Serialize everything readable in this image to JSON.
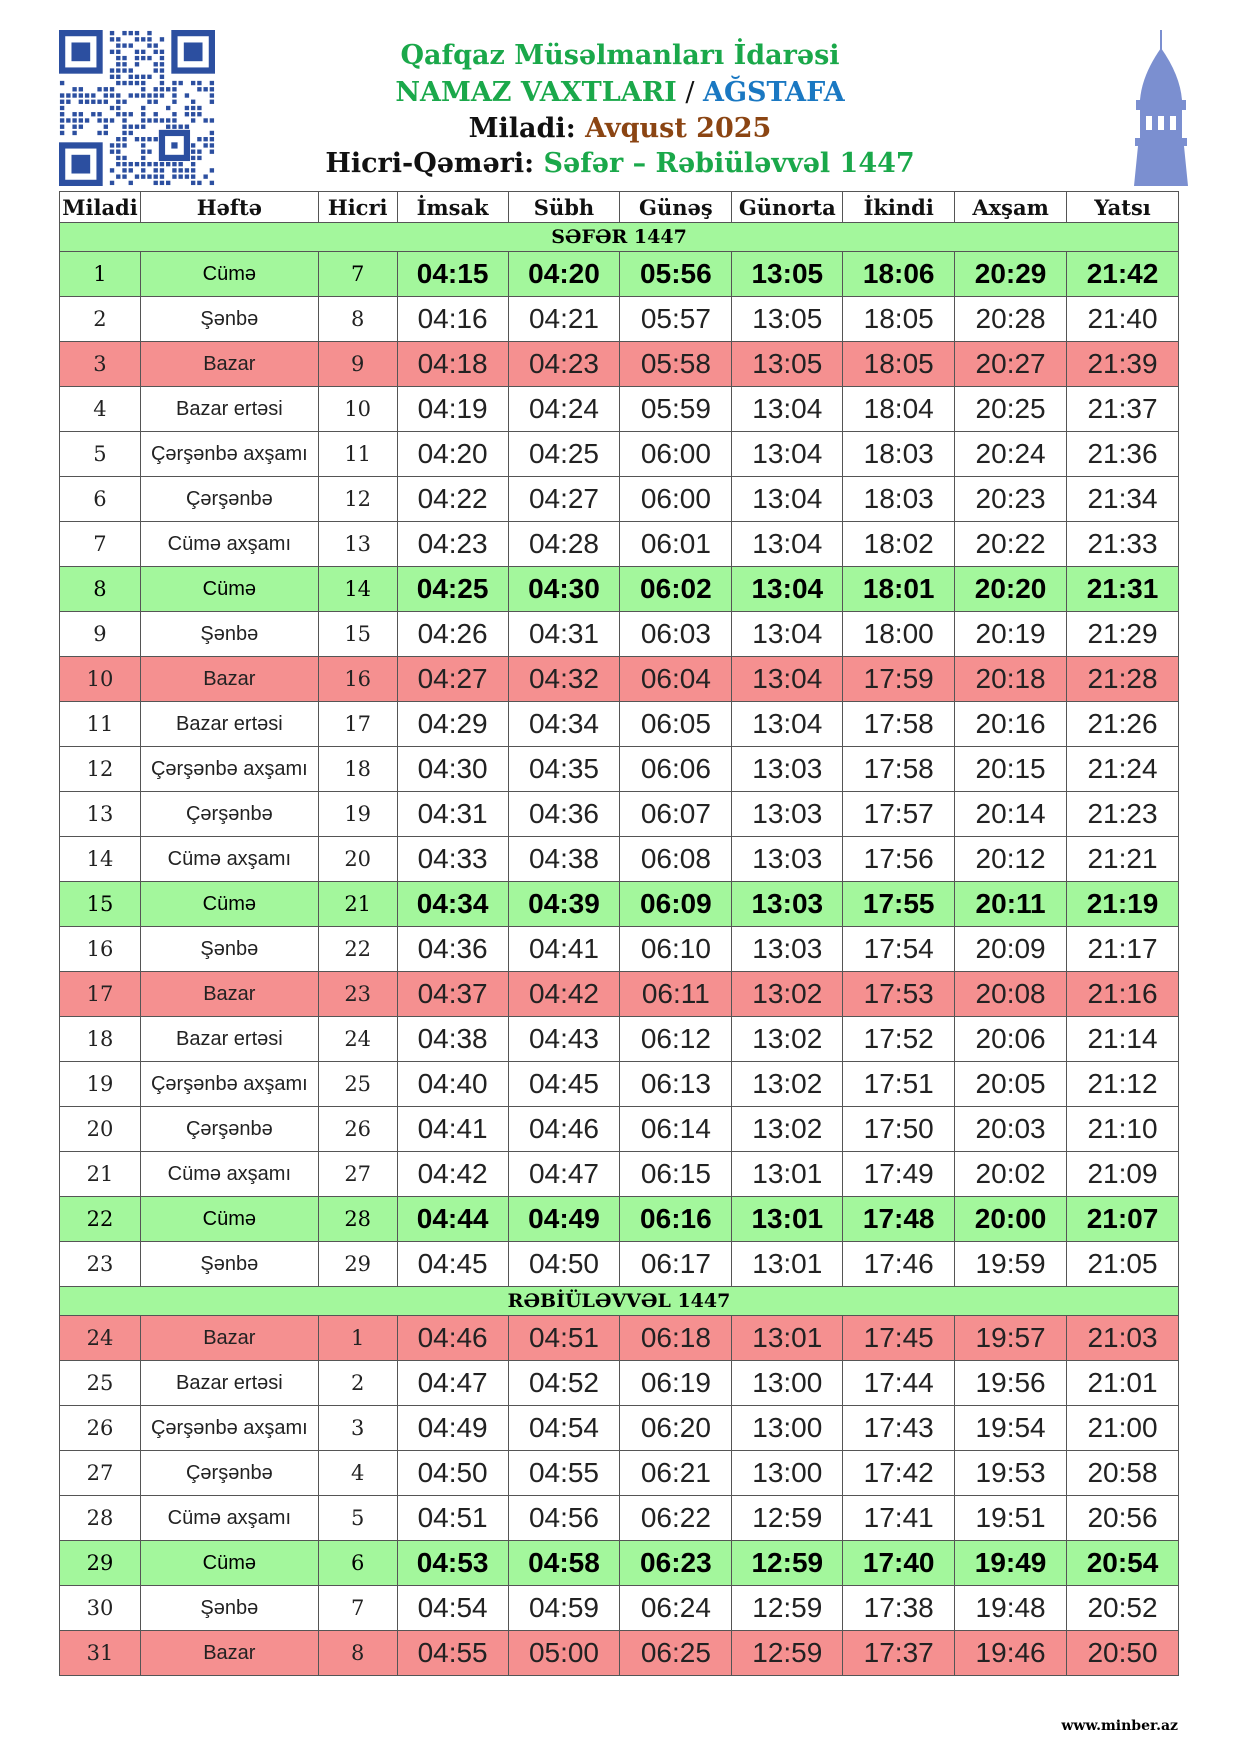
{
  "header": {
    "org": "Qafqaz Müsəlmanları İdarəsi",
    "title_a": "NAMAZ VAXTLARI",
    "sep": " / ",
    "city": "AĞSTAFA",
    "miladi_label": "Miladi: ",
    "miladi_value": "Avqust 2025",
    "hicri_label": "Hicri-Qəməri: ",
    "hicri_value": "Səfər – Rəbiüləvvəl 1447"
  },
  "colors": {
    "friday": "#a3f79c",
    "sunday": "#f59090",
    "title_green": "#1aa84a",
    "city_blue": "#1a78c2"
  },
  "icons": {
    "qr": "qr-code",
    "minaret": "minaret-icon"
  },
  "columns": [
    "Miladi",
    "Həftə",
    "Hicri",
    "İmsak",
    "Sübh",
    "Günəş",
    "Günorta",
    "İkindi",
    "Axşam",
    "Yatsı"
  ],
  "sections": [
    "SƏFƏR 1447",
    "RƏBİÜLƏVVƏL 1447"
  ],
  "rows": [
    [
      "1",
      "Cümə",
      "7",
      "04:15",
      "04:20",
      "05:56",
      "13:05",
      "18:06",
      "20:29",
      "21:42"
    ],
    [
      "2",
      "Şənbə",
      "8",
      "04:16",
      "04:21",
      "05:57",
      "13:05",
      "18:05",
      "20:28",
      "21:40"
    ],
    [
      "3",
      "Bazar",
      "9",
      "04:18",
      "04:23",
      "05:58",
      "13:05",
      "18:05",
      "20:27",
      "21:39"
    ],
    [
      "4",
      "Bazar ertəsi",
      "10",
      "04:19",
      "04:24",
      "05:59",
      "13:04",
      "18:04",
      "20:25",
      "21:37"
    ],
    [
      "5",
      "Çərşənbə axşamı",
      "11",
      "04:20",
      "04:25",
      "06:00",
      "13:04",
      "18:03",
      "20:24",
      "21:36"
    ],
    [
      "6",
      "Çərşənbə",
      "12",
      "04:22",
      "04:27",
      "06:00",
      "13:04",
      "18:03",
      "20:23",
      "21:34"
    ],
    [
      "7",
      "Cümə axşamı",
      "13",
      "04:23",
      "04:28",
      "06:01",
      "13:04",
      "18:02",
      "20:22",
      "21:33"
    ],
    [
      "8",
      "Cümə",
      "14",
      "04:25",
      "04:30",
      "06:02",
      "13:04",
      "18:01",
      "20:20",
      "21:31"
    ],
    [
      "9",
      "Şənbə",
      "15",
      "04:26",
      "04:31",
      "06:03",
      "13:04",
      "18:00",
      "20:19",
      "21:29"
    ],
    [
      "10",
      "Bazar",
      "16",
      "04:27",
      "04:32",
      "06:04",
      "13:04",
      "17:59",
      "20:18",
      "21:28"
    ],
    [
      "11",
      "Bazar ertəsi",
      "17",
      "04:29",
      "04:34",
      "06:05",
      "13:04",
      "17:58",
      "20:16",
      "21:26"
    ],
    [
      "12",
      "Çərşənbə axşamı",
      "18",
      "04:30",
      "04:35",
      "06:06",
      "13:03",
      "17:58",
      "20:15",
      "21:24"
    ],
    [
      "13",
      "Çərşənbə",
      "19",
      "04:31",
      "04:36",
      "06:07",
      "13:03",
      "17:57",
      "20:14",
      "21:23"
    ],
    [
      "14",
      "Cümə axşamı",
      "20",
      "04:33",
      "04:38",
      "06:08",
      "13:03",
      "17:56",
      "20:12",
      "21:21"
    ],
    [
      "15",
      "Cümə",
      "21",
      "04:34",
      "04:39",
      "06:09",
      "13:03",
      "17:55",
      "20:11",
      "21:19"
    ],
    [
      "16",
      "Şənbə",
      "22",
      "04:36",
      "04:41",
      "06:10",
      "13:03",
      "17:54",
      "20:09",
      "21:17"
    ],
    [
      "17",
      "Bazar",
      "23",
      "04:37",
      "04:42",
      "06:11",
      "13:02",
      "17:53",
      "20:08",
      "21:16"
    ],
    [
      "18",
      "Bazar ertəsi",
      "24",
      "04:38",
      "04:43",
      "06:12",
      "13:02",
      "17:52",
      "20:06",
      "21:14"
    ],
    [
      "19",
      "Çərşənbə axşamı",
      "25",
      "04:40",
      "04:45",
      "06:13",
      "13:02",
      "17:51",
      "20:05",
      "21:12"
    ],
    [
      "20",
      "Çərşənbə",
      "26",
      "04:41",
      "04:46",
      "06:14",
      "13:02",
      "17:50",
      "20:03",
      "21:10"
    ],
    [
      "21",
      "Cümə axşamı",
      "27",
      "04:42",
      "04:47",
      "06:15",
      "13:01",
      "17:49",
      "20:02",
      "21:09"
    ],
    [
      "22",
      "Cümə",
      "28",
      "04:44",
      "04:49",
      "06:16",
      "13:01",
      "17:48",
      "20:00",
      "21:07"
    ],
    [
      "23",
      "Şənbə",
      "29",
      "04:45",
      "04:50",
      "06:17",
      "13:01",
      "17:46",
      "19:59",
      "21:05"
    ],
    [
      "24",
      "Bazar",
      "1",
      "04:46",
      "04:51",
      "06:18",
      "13:01",
      "17:45",
      "19:57",
      "21:03"
    ],
    [
      "25",
      "Bazar ertəsi",
      "2",
      "04:47",
      "04:52",
      "06:19",
      "13:00",
      "17:44",
      "19:56",
      "21:01"
    ],
    [
      "26",
      "Çərşənbə axşamı",
      "3",
      "04:49",
      "04:54",
      "06:20",
      "13:00",
      "17:43",
      "19:54",
      "21:00"
    ],
    [
      "27",
      "Çərşənbə",
      "4",
      "04:50",
      "04:55",
      "06:21",
      "13:00",
      "17:42",
      "19:53",
      "20:58"
    ],
    [
      "28",
      "Cümə axşamı",
      "5",
      "04:51",
      "04:56",
      "06:22",
      "12:59",
      "17:41",
      "19:51",
      "20:56"
    ],
    [
      "29",
      "Cümə",
      "6",
      "04:53",
      "04:58",
      "06:23",
      "12:59",
      "17:40",
      "19:49",
      "20:54"
    ],
    [
      "30",
      "Şənbə",
      "7",
      "04:54",
      "04:59",
      "06:24",
      "12:59",
      "17:38",
      "19:48",
      "20:52"
    ],
    [
      "31",
      "Bazar",
      "8",
      "04:55",
      "05:00",
      "06:25",
      "12:59",
      "17:37",
      "19:46",
      "20:50"
    ]
  ],
  "footer": "www.minber.az"
}
